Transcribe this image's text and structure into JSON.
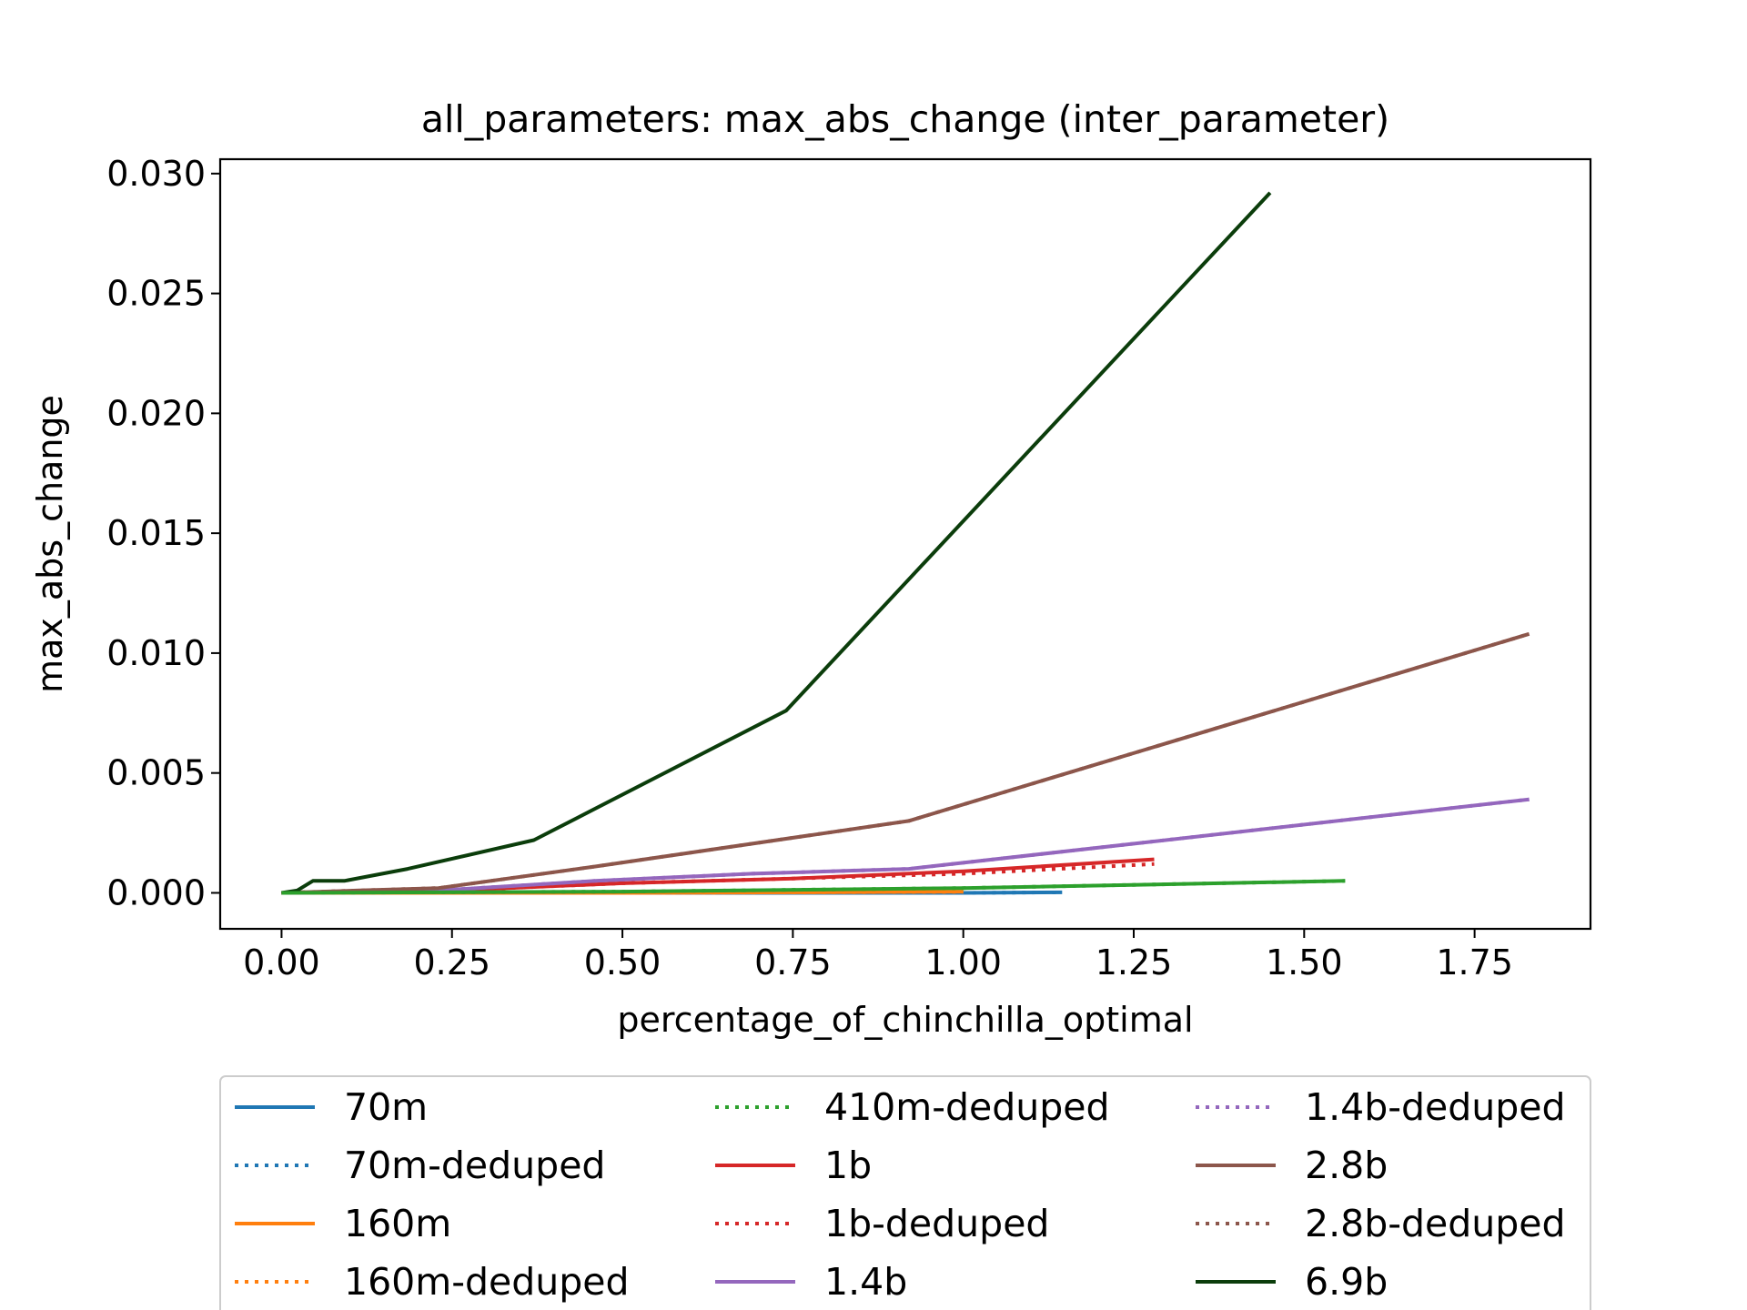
{
  "chart_data": {
    "type": "line",
    "title": "all_parameters: max_abs_change (inter_parameter)",
    "xlabel": "percentage_of_chinchilla_optimal",
    "ylabel": "max_abs_change",
    "xlim": [
      -0.09,
      1.92
    ],
    "ylim": [
      -0.0015,
      0.0306
    ],
    "xticks": [
      0.0,
      0.25,
      0.5,
      0.75,
      1.0,
      1.25,
      1.5,
      1.75
    ],
    "xtick_labels": [
      "0.00",
      "0.25",
      "0.50",
      "0.75",
      "1.00",
      "1.25",
      "1.50",
      "1.75"
    ],
    "yticks": [
      0.0,
      0.005,
      0.01,
      0.015,
      0.02,
      0.025,
      0.03
    ],
    "ytick_labels": [
      "0.000",
      "0.005",
      "0.010",
      "0.015",
      "0.020",
      "0.025",
      "0.030"
    ],
    "grid": false,
    "legend_position": "below",
    "series": [
      {
        "name": "70m",
        "color": "#1f77b4",
        "dash": "solid",
        "x": [
          0.0,
          0.25,
          0.5,
          0.75,
          1.0,
          1.145
        ],
        "y": [
          0.0,
          0.0,
          0.0,
          0.0,
          0.0,
          2e-05
        ]
      },
      {
        "name": "70m-deduped",
        "color": "#1f77b4",
        "dash": "dotted",
        "x": [
          0.0,
          0.5,
          1.0,
          1.145
        ],
        "y": [
          0.0,
          0.0,
          0.0,
          2e-05
        ]
      },
      {
        "name": "160m",
        "color": "#ff7f0e",
        "dash": "solid",
        "x": [
          0.0,
          0.25,
          0.5,
          0.75,
          1.0
        ],
        "y": [
          0.0,
          0.0,
          0.0,
          2e-05,
          5e-05
        ]
      },
      {
        "name": "160m-deduped",
        "color": "#ff7f0e",
        "dash": "dotted",
        "x": [
          0.0,
          0.5,
          1.0
        ],
        "y": [
          0.0,
          0.0,
          4e-05
        ]
      },
      {
        "name": "410m-deduped",
        "color": "#2ca02c",
        "dash": "dotted",
        "x": [
          0.0,
          0.5,
          1.0,
          1.56
        ],
        "y": [
          0.0,
          5e-05,
          0.0002,
          0.0005
        ]
      },
      {
        "name": "1b",
        "color": "#d62728",
        "dash": "solid",
        "x": [
          0.0,
          0.25,
          0.5,
          0.75,
          1.0,
          1.28
        ],
        "y": [
          0.0,
          0.0001,
          0.0004,
          0.0006,
          0.0009,
          0.0014
        ]
      },
      {
        "name": "1b-deduped",
        "color": "#d62728",
        "dash": "dotted",
        "x": [
          0.0,
          0.25,
          0.5,
          0.75,
          1.0,
          1.28
        ],
        "y": [
          0.0,
          0.0001,
          0.0004,
          0.0006,
          0.0008,
          0.0012
        ]
      },
      {
        "name": "1.4b",
        "color": "#9467bd",
        "dash": "solid",
        "x": [
          0.0,
          0.23,
          0.46,
          0.69,
          0.92,
          1.83
        ],
        "y": [
          0.0,
          0.0001,
          0.0005,
          0.0008,
          0.001,
          0.0039
        ]
      },
      {
        "name": "1.4b-deduped",
        "color": "#9467bd",
        "dash": "dotted",
        "x": [
          0.0,
          0.23,
          0.46,
          0.69,
          0.92,
          1.83
        ],
        "y": [
          0.0,
          0.0001,
          0.0005,
          0.0008,
          0.001,
          0.0039
        ]
      },
      {
        "name": "2.8b",
        "color": "#8c564b",
        "dash": "solid",
        "x": [
          0.0,
          0.115,
          0.23,
          0.46,
          0.92,
          1.83
        ],
        "y": [
          0.0,
          0.0001,
          0.0002,
          0.0011,
          0.003,
          0.0108
        ]
      },
      {
        "name": "2.8b-deduped",
        "color": "#8c564b",
        "dash": "dotted",
        "x": [
          0.0,
          0.115,
          0.23,
          0.46,
          0.92,
          1.83
        ],
        "y": [
          0.0,
          0.0001,
          0.0002,
          0.0011,
          0.003,
          0.0108
        ]
      },
      {
        "name": "6.9b",
        "color": "#0b3d0b",
        "dash": "solid",
        "x": [
          0.0,
          0.023,
          0.046,
          0.092,
          0.185,
          0.37,
          0.74,
          1.45
        ],
        "y": [
          0.0,
          0.0001,
          0.0005,
          0.0005,
          0.001,
          0.0022,
          0.0076,
          0.0292
        ]
      },
      {
        "name": "",
        "color": "#2ca02c",
        "dash": "solid",
        "x": [
          0.0,
          0.5,
          1.0,
          1.56
        ],
        "y": [
          0.0,
          5e-05,
          0.0002,
          0.0005
        ]
      }
    ],
    "legend": [
      {
        "name": "70m",
        "color": "#1f77b4",
        "dash": "solid"
      },
      {
        "name": "70m-deduped",
        "color": "#1f77b4",
        "dash": "dotted"
      },
      {
        "name": "160m",
        "color": "#ff7f0e",
        "dash": "solid"
      },
      {
        "name": "160m-deduped",
        "color": "#ff7f0e",
        "dash": "dotted"
      },
      {
        "name": "410m-deduped",
        "color": "#2ca02c",
        "dash": "dotted"
      },
      {
        "name": "1b",
        "color": "#d62728",
        "dash": "solid"
      },
      {
        "name": "1b-deduped",
        "color": "#d62728",
        "dash": "dotted"
      },
      {
        "name": "1.4b",
        "color": "#9467bd",
        "dash": "solid"
      },
      {
        "name": "1.4b-deduped",
        "color": "#9467bd",
        "dash": "dotted"
      },
      {
        "name": "2.8b",
        "color": "#8c564b",
        "dash": "solid"
      },
      {
        "name": "2.8b-deduped",
        "color": "#8c564b",
        "dash": "dotted"
      },
      {
        "name": "6.9b",
        "color": "#0b3d0b",
        "dash": "solid"
      }
    ]
  }
}
